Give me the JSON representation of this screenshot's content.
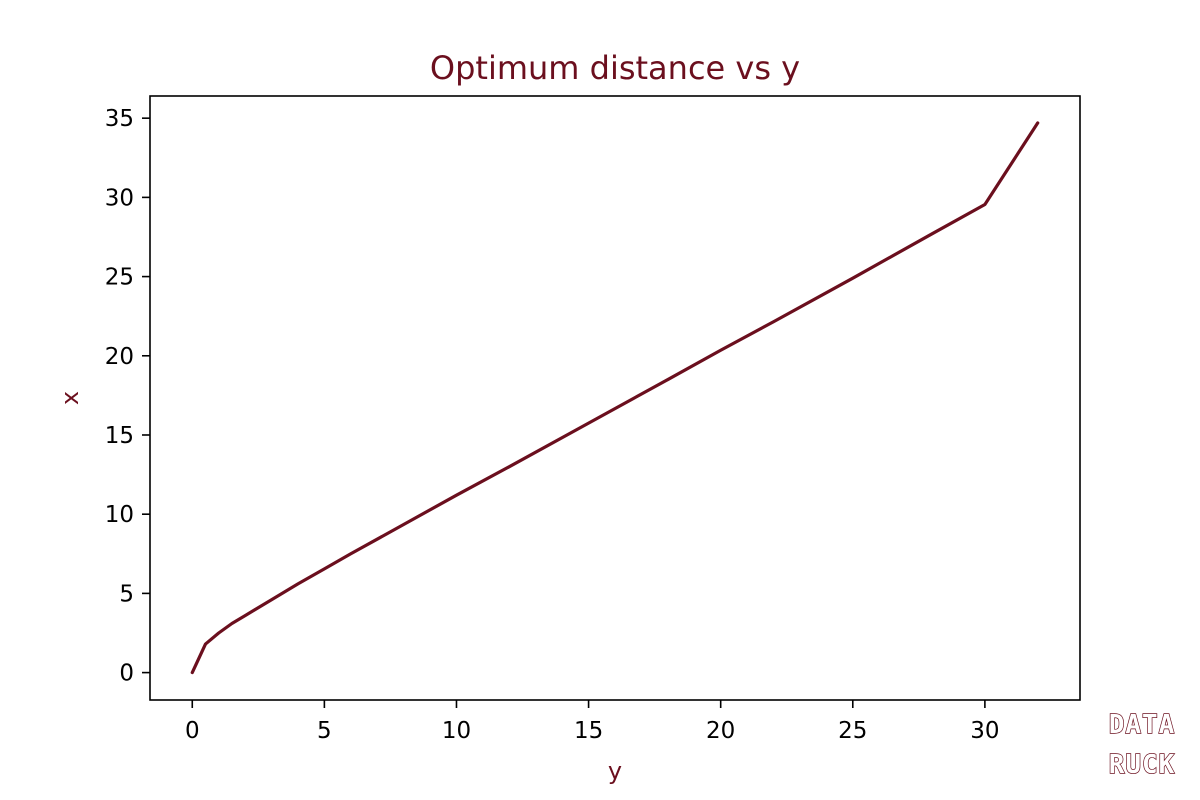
{
  "chart_data": {
    "type": "line",
    "title": "Optimum distance vs y",
    "xlabel": "y",
    "ylabel": "x",
    "xlim": [
      -1.6,
      33.6
    ],
    "ylim": [
      -1.73,
      36.4
    ],
    "xticks": [
      0,
      5,
      10,
      15,
      20,
      25,
      30
    ],
    "yticks": [
      0,
      5,
      10,
      15,
      20,
      25,
      30,
      35
    ],
    "grid": false,
    "legend": "none",
    "series": [
      {
        "x": [
          0,
          0.5,
          1,
          1.5,
          2,
          3,
          4,
          5,
          6,
          8,
          10,
          12,
          15,
          18,
          20,
          22,
          25,
          28,
          30,
          32
        ],
        "y": [
          0,
          1.8,
          2.5,
          3.1,
          3.6,
          4.6,
          5.6,
          6.55,
          7.5,
          9.35,
          11.2,
          13.0,
          15.75,
          18.5,
          20.35,
          22.15,
          24.9,
          27.7,
          29.55,
          34.7
        ]
      }
    ]
  },
  "colors": {
    "line": "#6b0f1e",
    "title": "#6b0f1e",
    "axis_label": "#6b0f1e",
    "watermark_fill": "#ffffff",
    "watermark_stroke": "#6b0f1e"
  },
  "watermark": {
    "line1": "DATA",
    "line2": "RUCK"
  }
}
